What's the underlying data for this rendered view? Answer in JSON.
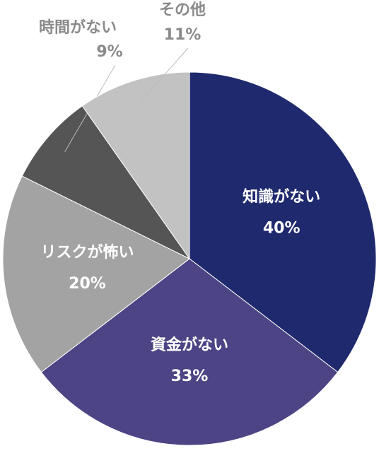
{
  "chart_data": {
    "type": "pie",
    "categories": [
      "知識がない",
      "資金がない",
      "リスクが怖い",
      "時間がない",
      "その他"
    ],
    "values": [
      40,
      33,
      20,
      9,
      11
    ],
    "value_labels": [
      "40%",
      "33%",
      "20%",
      "9%",
      "11%"
    ],
    "colors": [
      "#1f296d",
      "#4c4485",
      "#a3a3a3",
      "#555555",
      "#c2c2c2"
    ]
  }
}
